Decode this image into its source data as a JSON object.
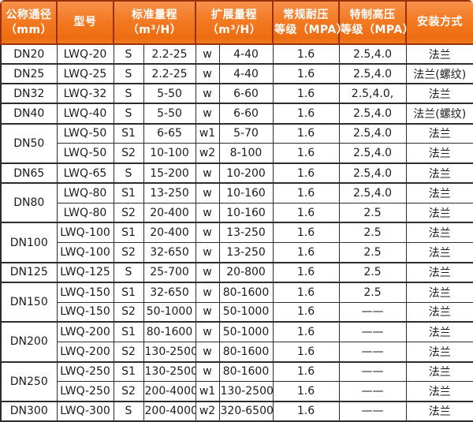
{
  "header": {
    "dn": [
      "公称通径",
      "（mm）"
    ],
    "model": [
      "型号"
    ],
    "std_range": [
      "标准量程",
      "（m³/H）"
    ],
    "ext_range": [
      "扩展量程",
      "（m³/H）"
    ],
    "normal_pressure": [
      "常规耐压",
      "等级（MPA）"
    ],
    "special_pressure": [
      "特制高压",
      "等级（MPA）"
    ],
    "install": [
      "安装方式"
    ]
  },
  "colors": {
    "header_orange": "#f37a23",
    "header_border_maroon": "#96310a",
    "grid_line": "#2d2d2d",
    "header_text": "#ffffff",
    "body_text": "#1b1b1b"
  },
  "table": {
    "groups": [
      {
        "dn": "DN20",
        "rows": [
          [
            "LWQ-20",
            "S",
            "2.2-25",
            "w",
            "4-40",
            "1.6",
            "2.5,4.0",
            "法兰"
          ]
        ]
      },
      {
        "dn": "DN25",
        "rows": [
          [
            "LWQ-25",
            "S",
            "2.2-25",
            "w",
            "4-40",
            "1.6",
            "2.5,4.0",
            "法兰(螺纹)"
          ]
        ]
      },
      {
        "dn": "DN32",
        "rows": [
          [
            "LWQ-32",
            "S",
            "5-50",
            "w",
            "6-60",
            "1.6",
            "2.5,4.0,",
            "法兰"
          ]
        ]
      },
      {
        "dn": "DN40",
        "rows": [
          [
            "LWQ-40",
            "S",
            "5-50",
            "w",
            "6-60",
            "1.6",
            "2.5,4.0",
            "法兰(螺纹)"
          ]
        ]
      },
      {
        "dn": "DN50",
        "rows": [
          [
            "LWQ-50",
            "S1",
            "6-65",
            "w1",
            "5-70",
            "1.6",
            "2.5,4.0",
            "法兰"
          ],
          [
            "LWQ-50",
            "S2",
            "10-100",
            "w2",
            "8-100",
            "1.6",
            "2.5,4.0",
            "法兰"
          ]
        ]
      },
      {
        "dn": "DN65",
        "rows": [
          [
            "LWQ-65",
            "S",
            "15-200",
            "w",
            "10-200",
            "1.6",
            "2.5,4.0",
            "法兰"
          ]
        ]
      },
      {
        "dn": "DN80",
        "rows": [
          [
            "LWQ-80",
            "S1",
            "13-250",
            "w",
            "10-160",
            "1.6",
            "2.5,4.0",
            "法兰"
          ],
          [
            "LWQ-80",
            "S2",
            "20-400",
            "w",
            "10-160",
            "1.6",
            "2.5",
            "法兰"
          ]
        ]
      },
      {
        "dn": "DN100",
        "rows": [
          [
            "LWQ-100",
            "S1",
            "20-400",
            "w",
            "13-250",
            "1.6",
            "2.5",
            "法兰"
          ],
          [
            "LWQ-100",
            "S2",
            "32-650",
            "w",
            "13-250",
            "1.6",
            "2.5",
            "法兰"
          ]
        ]
      },
      {
        "dn": "DN125",
        "rows": [
          [
            "LWQ-125",
            "S",
            "25-700",
            "w",
            "20-800",
            "1.6",
            "2.5",
            "法兰"
          ]
        ]
      },
      {
        "dn": "DN150",
        "rows": [
          [
            "LWQ-150",
            "S1",
            "32-650",
            "w",
            "80-1600",
            "1.6",
            "2.5",
            "法兰"
          ],
          [
            "LWQ-150",
            "S2",
            "50-1000",
            "w",
            "50-1000",
            "1.6",
            "——",
            "法兰"
          ]
        ]
      },
      {
        "dn": "DN200",
        "rows": [
          [
            "LWQ-200",
            "S1",
            "80-1600",
            "w",
            "50-1000",
            "1.6",
            "——",
            "法兰"
          ],
          [
            "LWQ-200",
            "S2",
            "130-2500",
            "w",
            "80-1600",
            "1.6",
            "——",
            "法兰"
          ]
        ]
      },
      {
        "dn": "DN250",
        "rows": [
          [
            "LWQ-250",
            "S1",
            "130-2500",
            "w",
            "80-1600",
            "1.6",
            "——",
            "法兰"
          ],
          [
            "LWQ-250",
            "S2",
            "200-4000",
            "w1",
            "130-2500",
            "1.6",
            "——",
            "法兰"
          ]
        ]
      },
      {
        "dn": "DN300",
        "rows": [
          [
            "LWQ-300",
            "S",
            "200-4000",
            "w2",
            "320-6500",
            "1.6",
            "——",
            "法兰"
          ]
        ]
      }
    ]
  }
}
